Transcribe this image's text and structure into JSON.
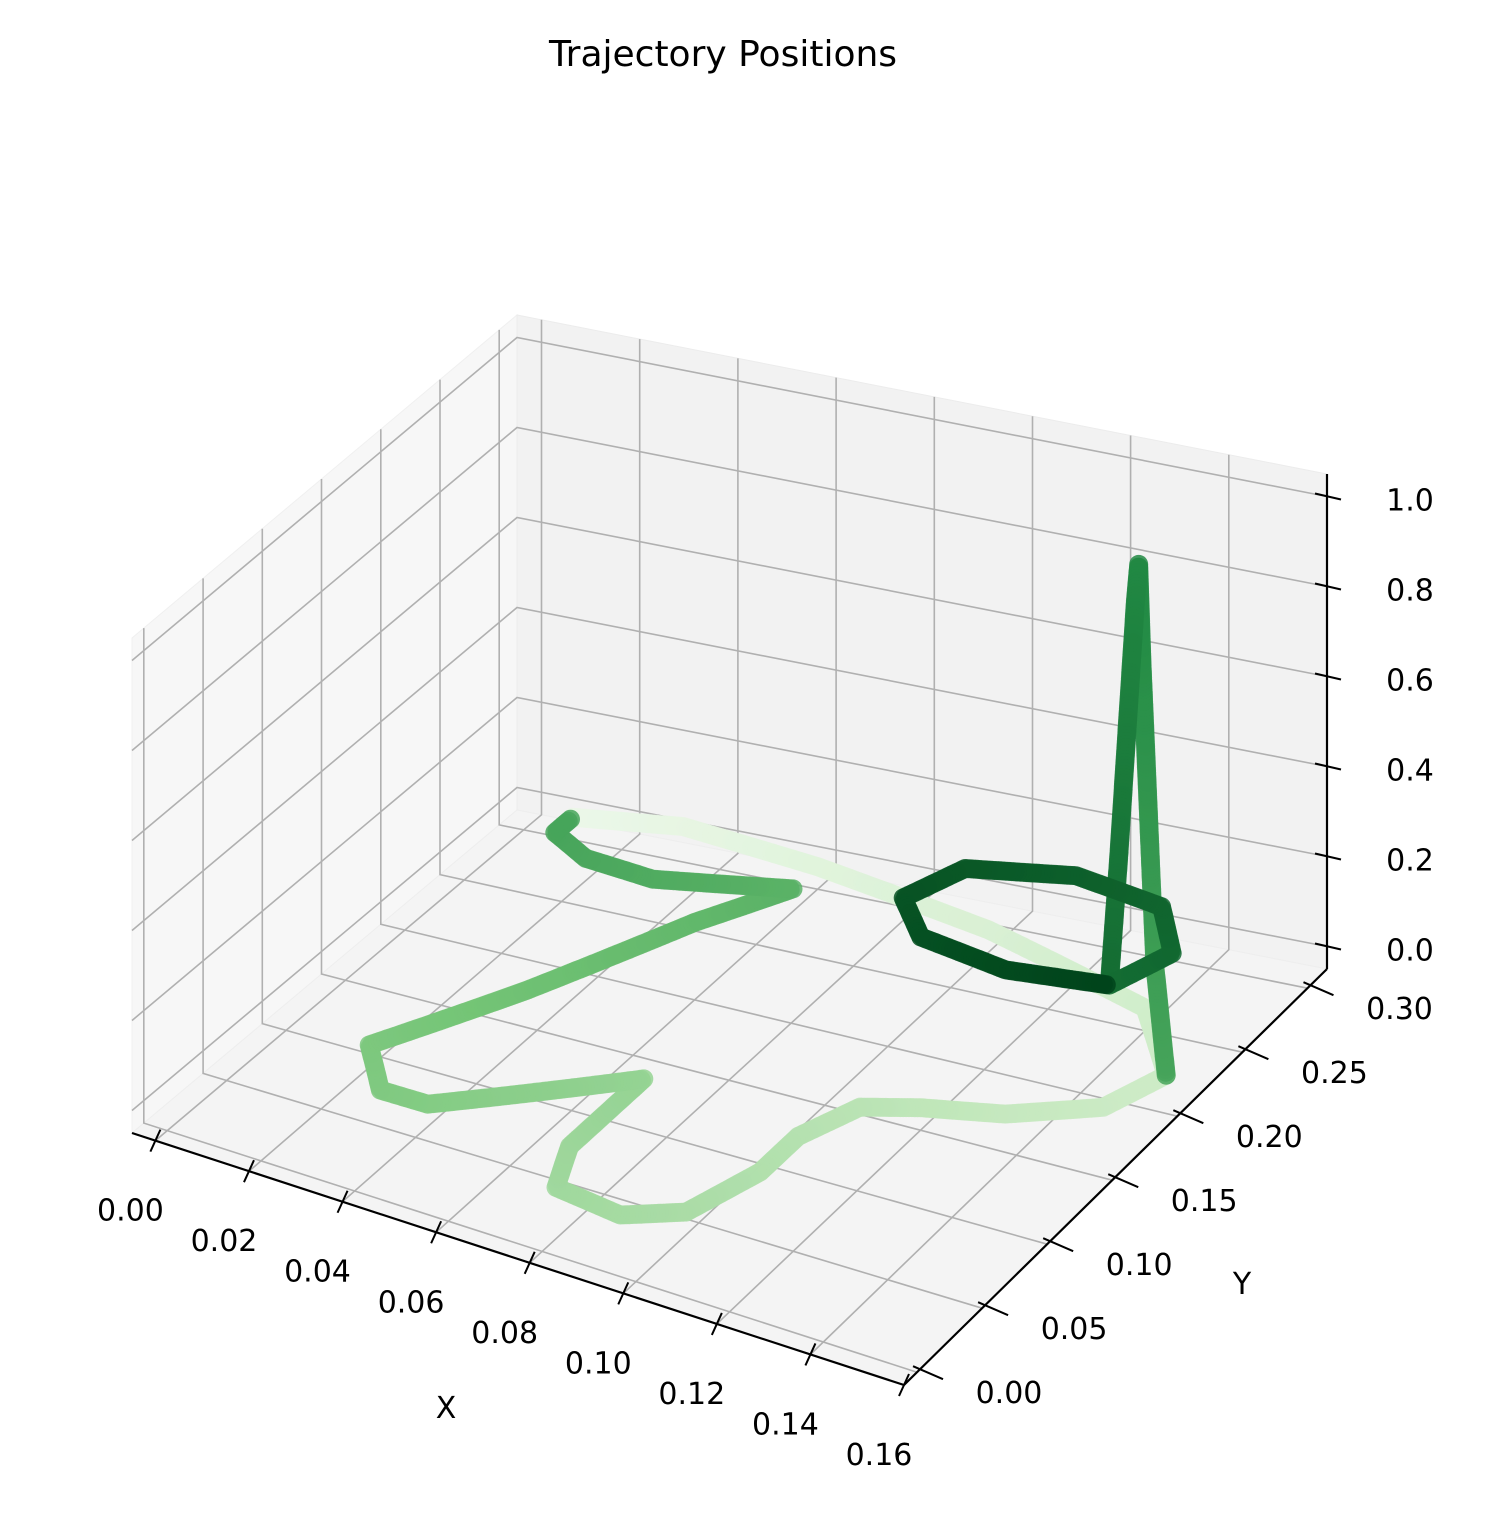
{
  "chart_data": {
    "type": "scatter",
    "projection": "3d",
    "title": "Trajectory Positions",
    "xlabel": "X",
    "ylabel": "Y",
    "zlabel": "",
    "grid": true,
    "colormap": "Greens",
    "xlim": [
      -0.005,
      0.16
    ],
    "ylim": [
      -0.01,
      0.315
    ],
    "zlim": [
      -0.05,
      1.05
    ],
    "x_ticks": [
      0.0,
      0.02,
      0.04,
      0.06,
      0.08,
      0.1,
      0.12,
      0.14,
      0.16
    ],
    "x_tick_labels": [
      "0.00",
      "0.02",
      "0.04",
      "0.06",
      "0.08",
      "0.10",
      "0.12",
      "0.14",
      "0.16"
    ],
    "y_ticks": [
      0.0,
      0.05,
      0.1,
      0.15,
      0.2,
      0.25,
      0.3
    ],
    "y_tick_labels": [
      "0.00",
      "0.05",
      "0.10",
      "0.15",
      "0.20",
      "0.25",
      "0.30"
    ],
    "z_ticks": [
      0.0,
      0.2,
      0.4,
      0.6,
      0.8,
      1.0
    ],
    "z_tick_labels": [
      "0.0",
      "0.2",
      "0.4",
      "0.6",
      "0.8",
      "1.0"
    ],
    "series": [
      {
        "points": [
          [
            0.01,
            0.3,
            0.0
          ],
          [
            0.03,
            0.31,
            0.0
          ],
          [
            0.06,
            0.3,
            0.0
          ],
          [
            0.1,
            0.28,
            0.0
          ],
          [
            0.14,
            0.25,
            0.0
          ],
          [
            0.155,
            0.21,
            0.0
          ],
          [
            0.15,
            0.18,
            0.0
          ],
          [
            0.135,
            0.16,
            0.0
          ],
          [
            0.12,
            0.15,
            0.0
          ],
          [
            0.11,
            0.14,
            0.0
          ],
          [
            0.105,
            0.11,
            0.0
          ],
          [
            0.105,
            0.08,
            0.0
          ],
          [
            0.1,
            0.04,
            0.0
          ],
          [
            0.09,
            0.025,
            0.0
          ],
          [
            0.075,
            0.03,
            0.0
          ],
          [
            0.07,
            0.06,
            0.0
          ],
          [
            0.07,
            0.12,
            0.0
          ],
          [
            0.055,
            0.09,
            0.0
          ],
          [
            0.04,
            0.06,
            0.0
          ],
          [
            0.03,
            0.06,
            0.0
          ],
          [
            0.02,
            0.09,
            0.0
          ],
          [
            0.035,
            0.16,
            0.0
          ],
          [
            0.05,
            0.24,
            0.0
          ],
          [
            0.06,
            0.28,
            0.0
          ],
          [
            0.035,
            0.265,
            0.0
          ],
          [
            0.02,
            0.27,
            0.0
          ],
          [
            0.01,
            0.285,
            0.0
          ],
          [
            0.01,
            0.3,
            0.0
          ]
        ]
      },
      {
        "points": [
          [
            0.155,
            0.21,
            0.0
          ],
          [
            0.15,
            0.22,
            0.2
          ],
          [
            0.146,
            0.23,
            0.5
          ],
          [
            0.142,
            0.24,
            0.8
          ],
          [
            0.14,
            0.245,
            1.0
          ],
          [
            0.138,
            0.25,
            0.9
          ],
          [
            0.135,
            0.255,
            0.6
          ],
          [
            0.132,
            0.26,
            0.3
          ],
          [
            0.13,
            0.26,
            0.0
          ]
        ]
      },
      {
        "points": [
          [
            0.13,
            0.26,
            0.0
          ],
          [
            0.135,
            0.29,
            0.0
          ],
          [
            0.125,
            0.32,
            0.0
          ],
          [
            0.105,
            0.33,
            0.0
          ],
          [
            0.085,
            0.32,
            0.0
          ],
          [
            0.08,
            0.29,
            0.0
          ],
          [
            0.09,
            0.265,
            0.0
          ],
          [
            0.11,
            0.255,
            0.0
          ],
          [
            0.13,
            0.26,
            0.0
          ]
        ]
      }
    ]
  }
}
